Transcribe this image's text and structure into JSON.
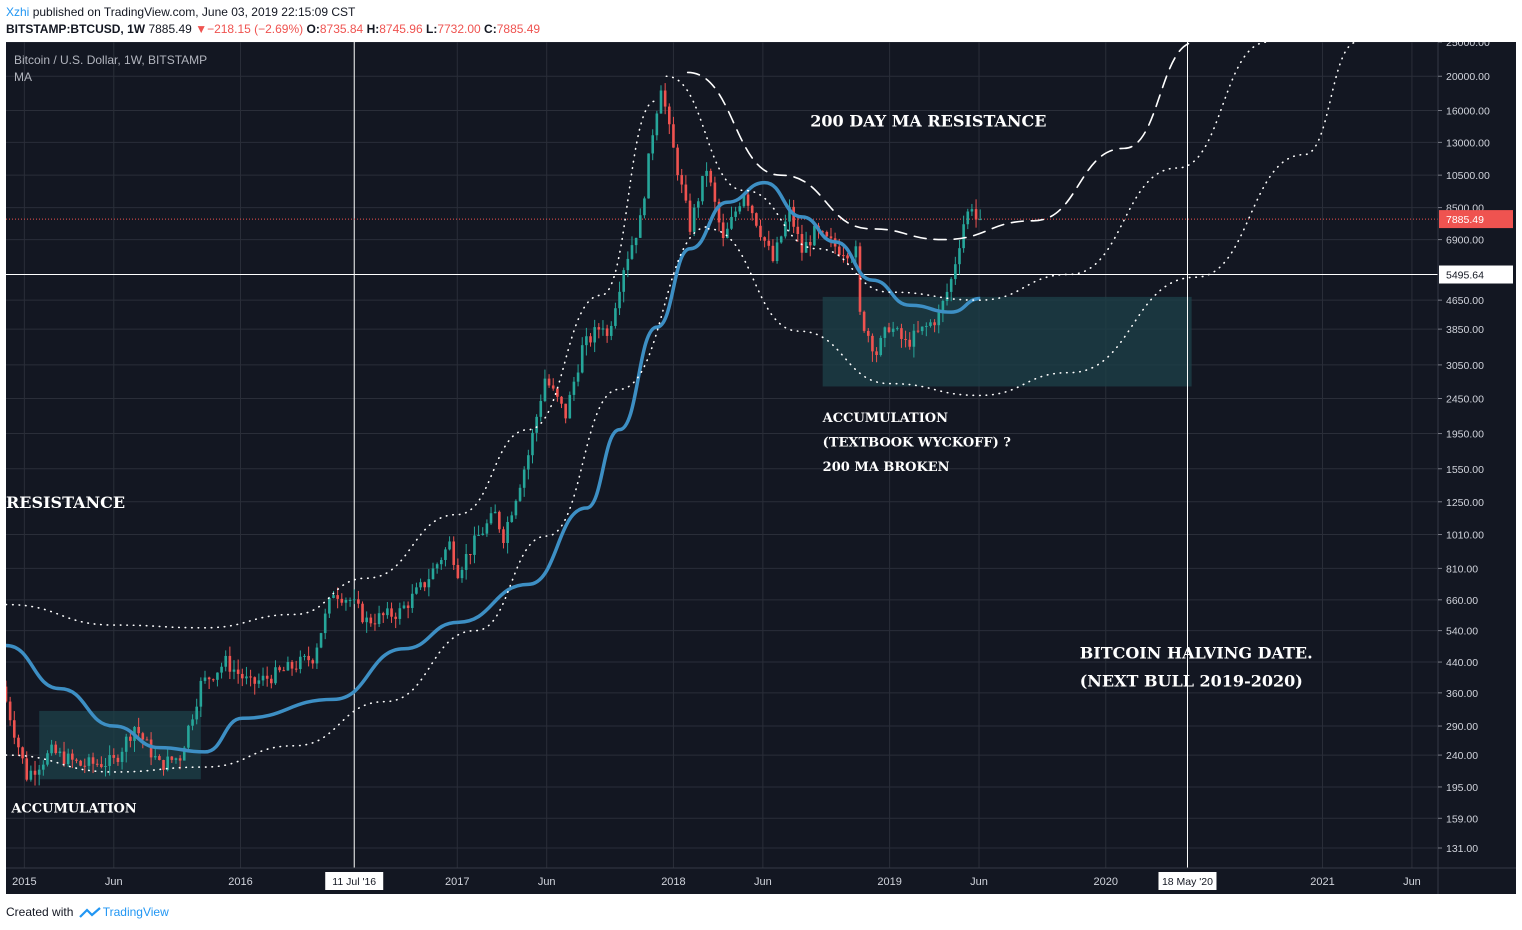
{
  "header": {
    "author": "Xzhi",
    "published_text": "published on TradingView.com, June 03, 2019 22:15:09 CST",
    "symbol": "BITSTAMP:BTCUSD, 1W",
    "last": "7885.49",
    "change_arrow": "▼",
    "change": "−218.15 (−2.69%)",
    "o_label": "O:",
    "o": "8735.84",
    "h_label": "H:",
    "h": "8745.96",
    "l_label": "L:",
    "l": "7732.00",
    "c_label": "C:",
    "c": "7885.49"
  },
  "footer": {
    "created_with": "Created with",
    "brand": "TradingView"
  },
  "colors": {
    "background": "#131722",
    "up": "#26a69a",
    "down": "#ef5350",
    "ma": "#3d8fc4",
    "zone": "#1d3e47",
    "grid": "#2a2e39",
    "axis_text": "#d1d4dc"
  },
  "chart_data": {
    "type": "candlestick",
    "title": "Bitcoin / U.S. Dollar, 1W, BITSTAMP",
    "indicator": "MA",
    "y_scale": "log",
    "ylim": [
      115,
      25000
    ],
    "xlim": [
      "2014-12-01",
      "2021-07-15"
    ],
    "y_ticks": [
      "25000.00",
      "20000.00",
      "16000.00",
      "13000.00",
      "10500.00",
      "8500.00",
      "6900.00",
      "4650.00",
      "3850.00",
      "3050.00",
      "2450.00",
      "1950.00",
      "1550.00",
      "1250.00",
      "1010.00",
      "810.00",
      "660.00",
      "540.00",
      "440.00",
      "360.00",
      "290.00",
      "240.00",
      "195.00",
      "159.00",
      "131.00"
    ],
    "x_ticks": [
      {
        "label": "2015",
        "date": "2015-01-01"
      },
      {
        "label": "Jun",
        "date": "2015-06-01"
      },
      {
        "label": "2016",
        "date": "2016-01-01"
      },
      {
        "label": "2017",
        "date": "2017-01-01"
      },
      {
        "label": "Jun",
        "date": "2017-06-01"
      },
      {
        "label": "2018",
        "date": "2018-01-01"
      },
      {
        "label": "Jun",
        "date": "2018-06-01"
      },
      {
        "label": "2019",
        "date": "2019-01-01"
      },
      {
        "label": "Jun",
        "date": "2019-06-01"
      },
      {
        "label": "2020",
        "date": "2020-01-01"
      },
      {
        "label": "2021",
        "date": "2021-01-01"
      },
      {
        "label": "Jun",
        "date": "2021-06-01"
      }
    ],
    "vertical_markers": [
      {
        "label": "11 Jul '16",
        "date": "2016-07-11"
      },
      {
        "label": "18 May '20",
        "date": "2020-05-18"
      }
    ],
    "price_labels": [
      {
        "value": 7885.49,
        "text": "7885.49",
        "color": "#ef5350"
      },
      {
        "value": 5495.64,
        "text": "5495.64",
        "color": "#ffffff"
      }
    ],
    "price_path": [
      [
        "2014-12-01",
        375
      ],
      [
        "2015-01-12",
        210
      ],
      [
        "2015-02-23",
        245
      ],
      [
        "2015-04-13",
        225
      ],
      [
        "2015-06-08",
        230
      ],
      [
        "2015-07-13",
        290
      ],
      [
        "2015-08-24",
        225
      ],
      [
        "2015-09-28",
        238
      ],
      [
        "2015-11-02",
        380
      ],
      [
        "2015-12-14",
        440
      ],
      [
        "2016-01-25",
        380
      ],
      [
        "2016-03-14",
        410
      ],
      [
        "2016-05-09",
        455
      ],
      [
        "2016-06-13",
        700
      ],
      [
        "2016-07-11",
        660
      ],
      [
        "2016-08-08",
        575
      ],
      [
        "2016-10-03",
        610
      ],
      [
        "2016-11-14",
        735
      ],
      [
        "2016-12-26",
        950
      ],
      [
        "2017-01-09",
        800
      ],
      [
        "2017-02-13",
        1000
      ],
      [
        "2017-03-13",
        1150
      ],
      [
        "2017-03-27",
        1000
      ],
      [
        "2017-05-08",
        1700
      ],
      [
        "2017-06-05",
        2800
      ],
      [
        "2017-07-10",
        2200
      ],
      [
        "2017-08-07",
        3400
      ],
      [
        "2017-09-11",
        4000
      ],
      [
        "2017-09-18",
        3650
      ],
      [
        "2017-10-16",
        5800
      ],
      [
        "2017-11-13",
        7800
      ],
      [
        "2017-12-04",
        14000
      ],
      [
        "2017-12-18",
        19000
      ],
      [
        "2018-01-01",
        14000
      ],
      [
        "2018-02-05",
        7500
      ],
      [
        "2018-03-05",
        11000
      ],
      [
        "2018-04-02",
        6800
      ],
      [
        "2018-05-07",
        9500
      ],
      [
        "2018-06-25",
        6000
      ],
      [
        "2018-07-23",
        8300
      ],
      [
        "2018-08-13",
        6400
      ],
      [
        "2018-09-03",
        7200
      ],
      [
        "2018-10-15",
        6500
      ],
      [
        "2018-11-12",
        6350
      ],
      [
        "2018-11-19",
        4200
      ],
      [
        "2018-12-17",
        3300
      ],
      [
        "2019-01-07",
        3950
      ],
      [
        "2019-02-04",
        3500
      ],
      [
        "2019-03-11",
        3900
      ],
      [
        "2019-04-01",
        4200
      ],
      [
        "2019-04-22",
        5300
      ],
      [
        "2019-05-13",
        7700
      ],
      [
        "2019-05-27",
        8700
      ],
      [
        "2019-06-03",
        7885.49
      ]
    ],
    "ma_path": [
      [
        "2014-12-01",
        490
      ],
      [
        "2015-03-02",
        370
      ],
      [
        "2015-06-01",
        290
      ],
      [
        "2015-08-17",
        252
      ],
      [
        "2015-11-02",
        245
      ],
      [
        "2016-01-04",
        305
      ],
      [
        "2016-06-06",
        345
      ],
      [
        "2016-10-03",
        480
      ],
      [
        "2017-01-02",
        570
      ],
      [
        "2017-05-01",
        730
      ],
      [
        "2017-08-07",
        1200
      ],
      [
        "2017-10-02",
        2000
      ],
      [
        "2017-12-04",
        3900
      ],
      [
        "2018-01-29",
        6500
      ],
      [
        "2018-04-02",
        8800
      ],
      [
        "2018-06-04",
        10000
      ],
      [
        "2018-08-06",
        8000
      ],
      [
        "2018-10-01",
        6800
      ],
      [
        "2018-12-03",
        5300
      ],
      [
        "2019-02-04",
        4500
      ],
      [
        "2019-04-15",
        4300
      ],
      [
        "2019-06-03",
        4700
      ]
    ],
    "zones": [
      {
        "x0": "2015-01-26",
        "x1": "2015-10-26",
        "y0": 205,
        "y1": 320
      },
      {
        "x0": "2018-09-10",
        "x1": "2020-05-25",
        "y0": 2650,
        "y1": 4750
      }
    ],
    "annotations": [
      {
        "text": "200 DAY MA RESISTANCE",
        "date": "2018-08-20",
        "value": 14400
      },
      {
        "text": "ACCUMULATION",
        "date": "2018-09-10",
        "value": 2100
      },
      {
        "text": "(TEXTBOOK WYCKOFF) ?",
        "date": "2018-09-10",
        "value": 1790
      },
      {
        "text": "200 MA BROKEN",
        "date": "2018-09-10",
        "value": 1530
      },
      {
        "text": "RESISTANCE",
        "date": "2014-12-01",
        "value": 1200
      },
      {
        "text": "BITCOIN HALVING DATE.",
        "date": "2019-11-18",
        "value": 450
      },
      {
        "text": "(NEXT BULL 2019-2020)",
        "date": "2019-11-18",
        "value": 375
      },
      {
        "text": "ACCUMULATION",
        "date": "2014-12-10",
        "value": 165
      }
    ]
  }
}
